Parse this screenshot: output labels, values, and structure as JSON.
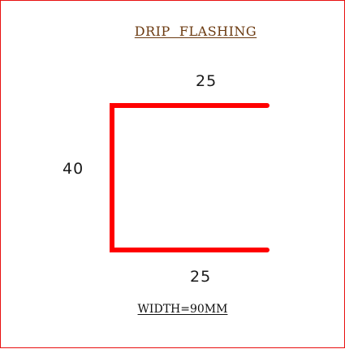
{
  "diagram": {
    "title": "DRIP  FLASHING",
    "title_color": "#6b3a10",
    "dimensions": {
      "top": "25",
      "left": "40",
      "bottom": "25"
    },
    "width_label": "WIDTH=90MM",
    "profile_color": "#ff0000",
    "border_color": "#e81010"
  }
}
